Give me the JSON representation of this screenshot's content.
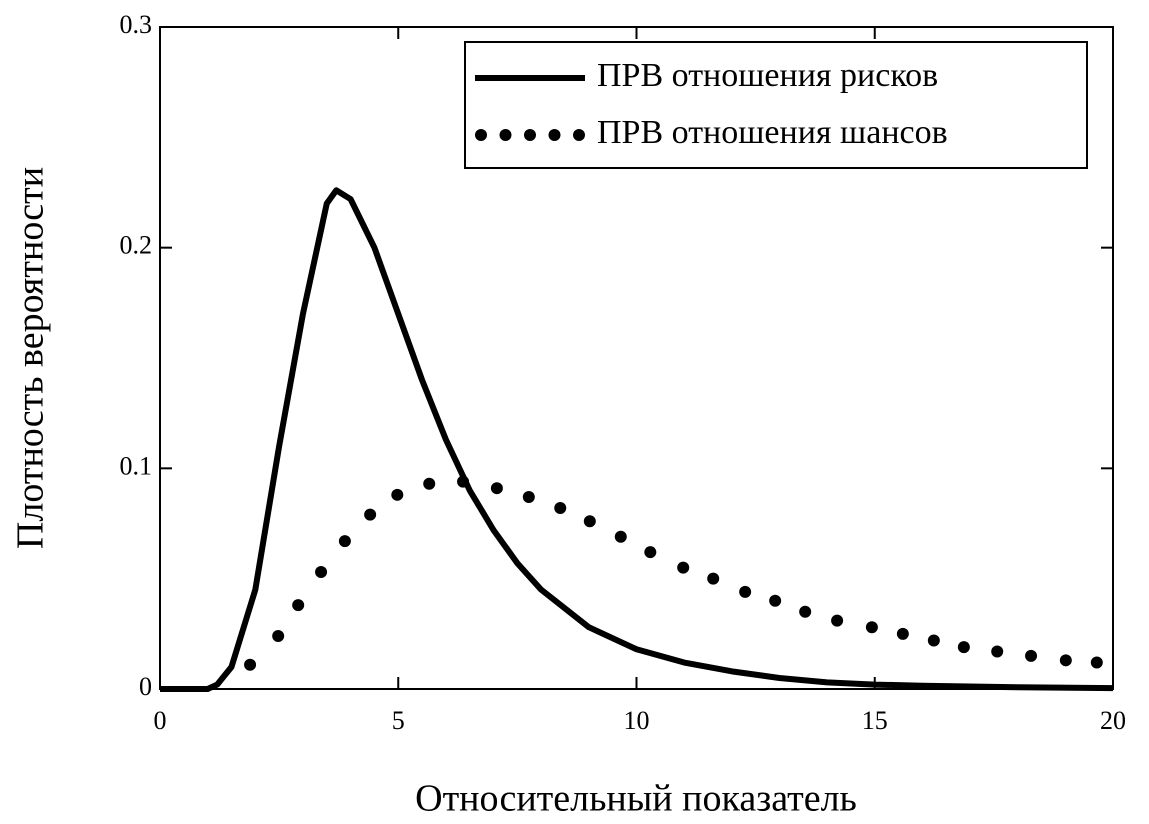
{
  "chart_data": {
    "type": "line",
    "xlabel": "Относительный показатель",
    "ylabel": "Плотность вероятности",
    "xlim": [
      0,
      20
    ],
    "ylim": [
      0,
      0.3
    ],
    "xticks": [
      0,
      5,
      10,
      15,
      20
    ],
    "yticks": [
      0,
      0.1,
      0.2,
      0.3
    ],
    "legend": "upper right",
    "series": [
      {
        "name": "ПРВ отношения рисков",
        "color": "#000000",
        "style": "solid",
        "x": [
          0,
          1,
          1.2,
          1.5,
          2,
          2.5,
          3,
          3.5,
          3.7,
          4,
          4.5,
          5,
          5.5,
          6,
          6.5,
          7,
          7.5,
          8,
          9,
          10,
          11,
          12,
          13,
          14,
          15,
          16,
          18,
          20
        ],
        "values": [
          0,
          0,
          0.002,
          0.01,
          0.045,
          0.11,
          0.17,
          0.22,
          0.226,
          0.222,
          0.2,
          0.17,
          0.14,
          0.113,
          0.09,
          0.072,
          0.057,
          0.045,
          0.028,
          0.018,
          0.012,
          0.008,
          0.005,
          0.003,
          0.002,
          0.0015,
          0.0008,
          0.0004
        ]
      },
      {
        "name": "ПРВ отношения шансов",
        "color": "#000000",
        "style": "dotted",
        "x": [
          1.89,
          2.48,
          2.9,
          3.38,
          3.88,
          4.41,
          4.98,
          5.65,
          6.36,
          7.07,
          7.74,
          8.4,
          9.02,
          9.67,
          10.29,
          10.98,
          11.61,
          12.28,
          12.91,
          13.54,
          14.21,
          14.94,
          15.59,
          16.24,
          16.87,
          17.57,
          18.28,
          19.01,
          19.66
        ],
        "values": [
          0.011,
          0.024,
          0.038,
          0.053,
          0.067,
          0.079,
          0.088,
          0.093,
          0.094,
          0.091,
          0.087,
          0.082,
          0.076,
          0.069,
          0.062,
          0.055,
          0.05,
          0.044,
          0.04,
          0.035,
          0.031,
          0.028,
          0.025,
          0.022,
          0.019,
          0.017,
          0.015,
          0.013,
          0.012
        ]
      }
    ]
  }
}
